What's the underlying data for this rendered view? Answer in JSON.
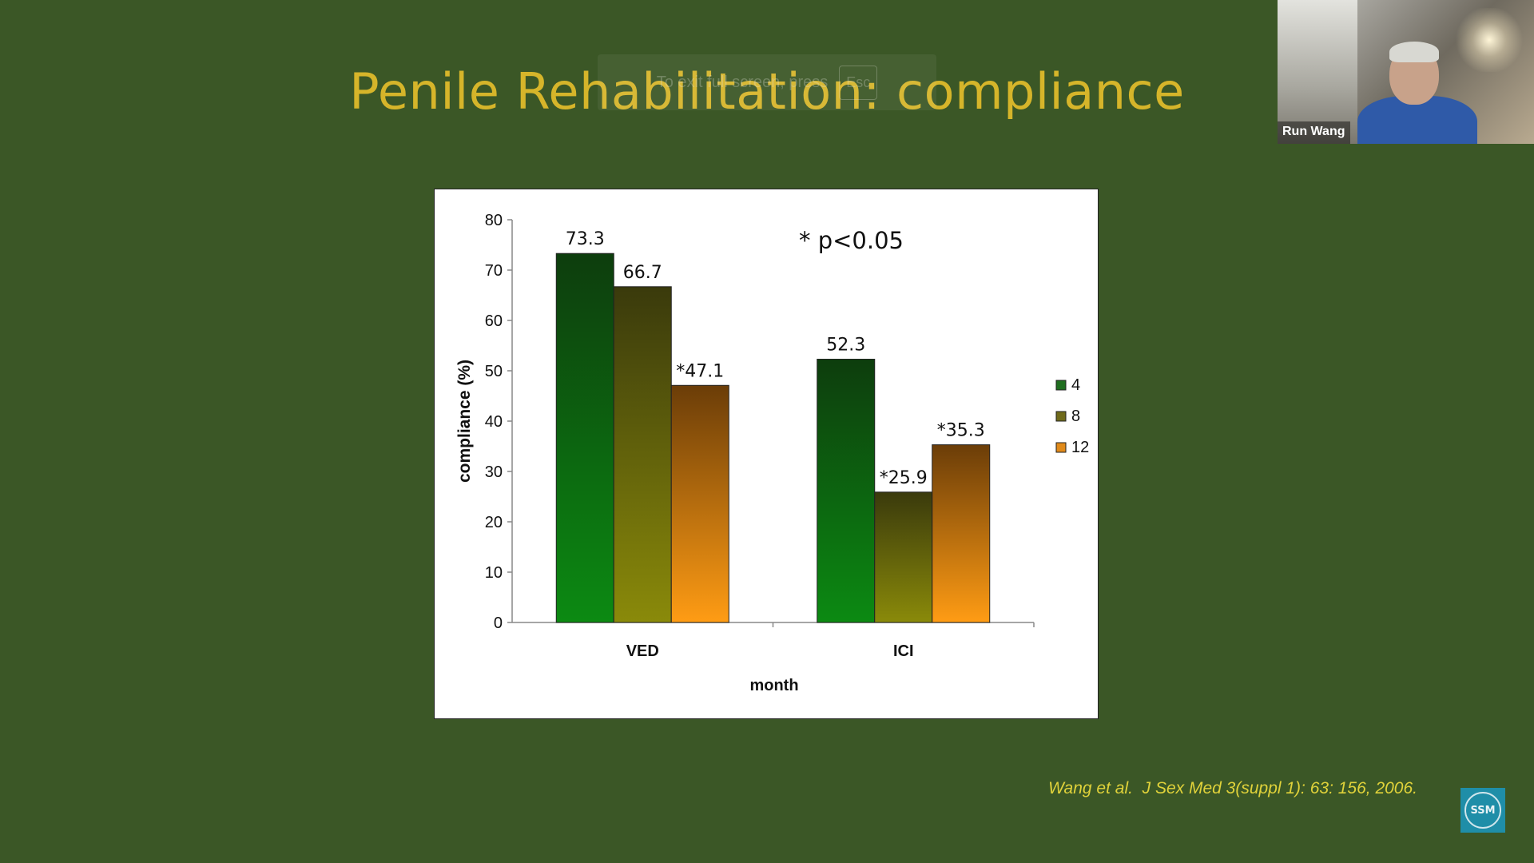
{
  "slide": {
    "title": "Penile Rehabilitation: compliance",
    "citation": "Wang et al.  J Sex Med 3(suppl 1): 63: 156, 2006."
  },
  "fullscreen_notice": {
    "text": "To exit full screen, press",
    "key": "Esc"
  },
  "webcam": {
    "participant_name": "Run Wang"
  },
  "logo": {
    "text": "SSM"
  },
  "colors": {
    "background": "#3b5726",
    "title": "#d6b52a",
    "citation": "#e0d23a",
    "series_4": "#1f6e1f",
    "series_8": "#6f6a1a",
    "series_12": "#e08a1a"
  },
  "chart_data": {
    "type": "bar",
    "categories": [
      "VED",
      "ICI"
    ],
    "series": [
      {
        "name": "4",
        "values": [
          73.3,
          52.3
        ],
        "labels": [
          "73.3",
          "52.3"
        ]
      },
      {
        "name": "8",
        "values": [
          66.7,
          25.9
        ],
        "labels": [
          "66.7",
          "*25.9"
        ]
      },
      {
        "name": "12",
        "values": [
          47.1,
          35.3
        ],
        "labels": [
          "*47.1",
          "*35.3"
        ]
      }
    ],
    "xlabel": "month",
    "ylabel": "compliance (%)",
    "ylim": [
      0,
      80
    ],
    "yticks": [
      0,
      10,
      20,
      30,
      40,
      50,
      60,
      70,
      80
    ],
    "annotation": "* p<0.05",
    "legend_position": "right",
    "grid": false
  }
}
